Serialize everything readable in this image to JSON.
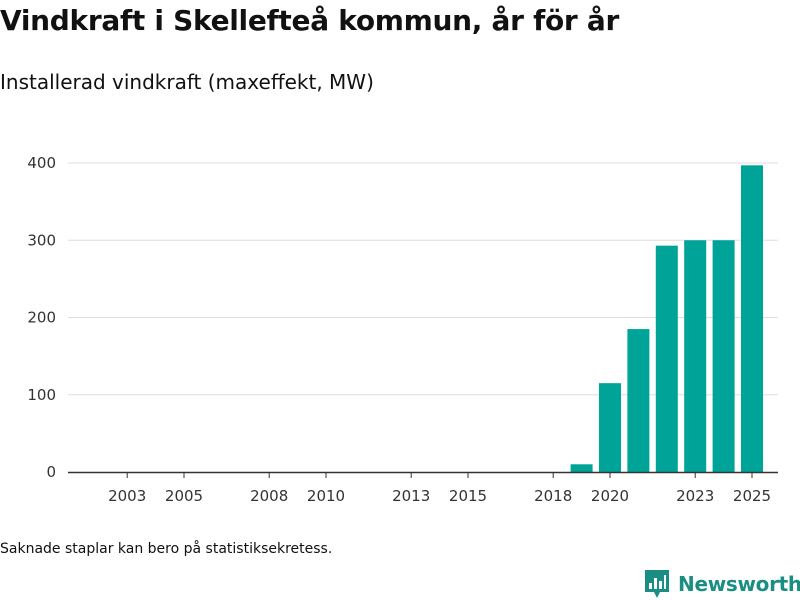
{
  "header": {
    "title": "Vindkraft i Skellefteå kommun, år för år",
    "subtitle": "Installerad vindkraft (maxeffekt, MW)"
  },
  "footer": {
    "note": "Saknade staplar kan bero på statistiksekretess.",
    "brand": "Newsworthy"
  },
  "colors": {
    "bar": "#00a398",
    "grid": "#dddddd",
    "axis": "#333333",
    "brand": "#1b8e84"
  },
  "chart_data": {
    "type": "bar",
    "title": "Vindkraft i Skellefteå kommun, år för år",
    "subtitle": "Installerad vindkraft (maxeffekt, MW)",
    "xlabel": "",
    "ylabel": "",
    "x": [
      2019,
      2020,
      2021,
      2022,
      2023,
      2024,
      2025
    ],
    "values": [
      10,
      115,
      185,
      293,
      300,
      300,
      397
    ],
    "x_ticks": [
      2003,
      2005,
      2008,
      2010,
      2013,
      2015,
      2018,
      2020,
      2023,
      2025
    ],
    "xlim": [
      2001,
      2026
    ],
    "y_ticks": [
      0,
      100,
      200,
      300,
      400
    ],
    "ylim": [
      0,
      400
    ],
    "grid": true,
    "legend": "none"
  }
}
